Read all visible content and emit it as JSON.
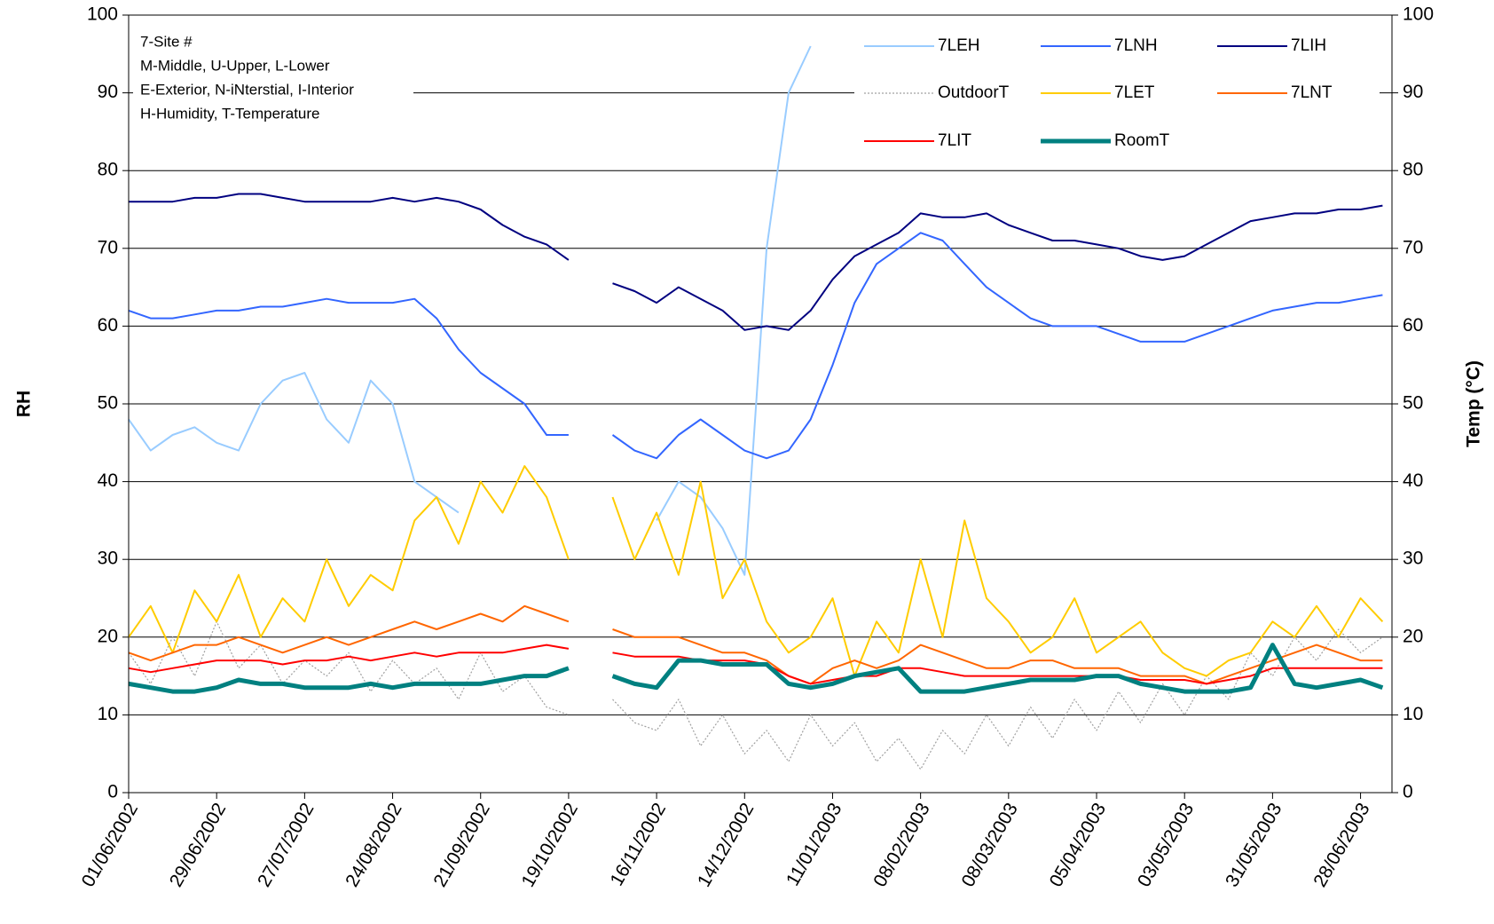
{
  "chart_data": {
    "type": "line",
    "y_label": "RH",
    "y2_label": "Temp (°C)",
    "annotation": [
      "7-Site #",
      "M-Middle, U-Upper, L-Lower",
      "E-Exterior, N-iNterstial, I-Interior",
      "H-Humidity, T-Temperature"
    ],
    "x": [
      "01/06/2002",
      "08/06/2002",
      "15/06/2002",
      "22/06/2002",
      "29/06/2002",
      "06/07/2002",
      "13/07/2002",
      "20/07/2002",
      "27/07/2002",
      "03/08/2002",
      "10/08/2002",
      "17/08/2002",
      "24/08/2002",
      "31/08/2002",
      "07/09/2002",
      "14/09/2002",
      "21/09/2002",
      "28/09/2002",
      "05/10/2002",
      "12/10/2002",
      "19/10/2002",
      "26/10/2002",
      "02/11/2002",
      "09/11/2002",
      "16/11/2002",
      "23/11/2002",
      "30/11/2002",
      "07/12/2002",
      "14/12/2002",
      "21/12/2002",
      "28/12/2002",
      "04/01/2003",
      "11/01/2003",
      "18/01/2003",
      "25/01/2003",
      "01/02/2003",
      "08/02/2003",
      "15/02/2003",
      "22/02/2003",
      "01/03/2003",
      "08/03/2003",
      "15/03/2003",
      "22/03/2003",
      "29/03/2003",
      "05/04/2003",
      "12/04/2003",
      "19/04/2003",
      "26/04/2003",
      "03/05/2003",
      "10/05/2003",
      "17/05/2003",
      "24/05/2003",
      "31/05/2003",
      "07/06/2003",
      "14/06/2003",
      "21/06/2003",
      "28/06/2003",
      "05/07/2003"
    ],
    "xlim": [
      "01/06/2002",
      "08/07/2003"
    ],
    "xticks": [
      "01/06/2002",
      "29/06/2002",
      "27/07/2002",
      "24/08/2002",
      "21/09/2002",
      "19/10/2002",
      "16/11/2002",
      "14/12/2002",
      "11/01/2003",
      "08/02/2003",
      "08/03/2003",
      "05/04/2003",
      "03/05/2003",
      "31/05/2003",
      "28/06/2003"
    ],
    "ylim": [
      0,
      100
    ],
    "yticks": [
      0,
      10,
      20,
      30,
      40,
      50,
      60,
      70,
      80,
      90,
      100
    ],
    "y2lim": [
      0,
      100
    ],
    "y2ticks": [
      0,
      10,
      20,
      30,
      40,
      50,
      60,
      70,
      80,
      90,
      100
    ],
    "grid": true,
    "legend": "top-right",
    "series": [
      {
        "name": "7LEH",
        "color": "#99ccff",
        "values": [
          48,
          44,
          46,
          47,
          45,
          44,
          50,
          53,
          54,
          48,
          45,
          53,
          50,
          40,
          38,
          36,
          null,
          null,
          null,
          null,
          null,
          null,
          null,
          null,
          35,
          40,
          38,
          34,
          28,
          70,
          90,
          96,
          null,
          null,
          null,
          null,
          null,
          null,
          null,
          null,
          null,
          null,
          null,
          null,
          null,
          null,
          null,
          null,
          null,
          null,
          null,
          null,
          null,
          null,
          null,
          null,
          null,
          null
        ]
      },
      {
        "name": "7LNH",
        "color": "#3366ff",
        "values": [
          62,
          61,
          61,
          61.5,
          62,
          62,
          62.5,
          62.5,
          63,
          63.5,
          63,
          63,
          63,
          63.5,
          61,
          57,
          54,
          52,
          50,
          46,
          46,
          null,
          46,
          44,
          43,
          46,
          48,
          46,
          44,
          43,
          44,
          48,
          55,
          63,
          68,
          70,
          72,
          71,
          68,
          65,
          63,
          61,
          60,
          60,
          60,
          59,
          58,
          58,
          58,
          59,
          60,
          61,
          62,
          62.5,
          63,
          63,
          63.5,
          64
        ]
      },
      {
        "name": "7LIH",
        "color": "#000080",
        "values": [
          76,
          76,
          76,
          76.5,
          76.5,
          77,
          77,
          76.5,
          76,
          76,
          76,
          76,
          76.5,
          76,
          76.5,
          76,
          75,
          73,
          71.5,
          70.5,
          68.5,
          null,
          65.5,
          64.5,
          63,
          65,
          63.5,
          62,
          59.5,
          60,
          59.5,
          62,
          66,
          69,
          70.5,
          72,
          74.5,
          74,
          74,
          74.5,
          73,
          72,
          71,
          71,
          70.5,
          70,
          69,
          68.5,
          69,
          70.5,
          72,
          73.5,
          74,
          74.5,
          74.5,
          75,
          75,
          75.5
        ]
      },
      {
        "name": "OutdoorT",
        "color": "#a0a0a0",
        "axis": "y2",
        "values": [
          18,
          14,
          20,
          15,
          22,
          16,
          19,
          14,
          17,
          15,
          18,
          13,
          17,
          14,
          16,
          12,
          18,
          13,
          15,
          11,
          10,
          null,
          12,
          9,
          8,
          12,
          6,
          10,
          5,
          8,
          4,
          10,
          6,
          9,
          4,
          7,
          3,
          8,
          5,
          10,
          6,
          11,
          7,
          12,
          8,
          13,
          9,
          14,
          10,
          15,
          12,
          18,
          15,
          20,
          17,
          21,
          18,
          20
        ]
      },
      {
        "name": "7LET",
        "color": "#ffcc00",
        "axis": "y2",
        "values": [
          20,
          24,
          18,
          26,
          22,
          28,
          20,
          25,
          22,
          30,
          24,
          28,
          26,
          35,
          38,
          32,
          40,
          36,
          42,
          38,
          30,
          null,
          38,
          30,
          36,
          28,
          40,
          25,
          30,
          22,
          18,
          20,
          25,
          15,
          22,
          18,
          30,
          20,
          35,
          25,
          22,
          18,
          20,
          25,
          18,
          20,
          22,
          18,
          16,
          15,
          17,
          18,
          22,
          20,
          24,
          20,
          25,
          22
        ]
      },
      {
        "name": "7LNT",
        "color": "#ff6600",
        "axis": "y2",
        "values": [
          18,
          17,
          18,
          19,
          19,
          20,
          19,
          18,
          19,
          20,
          19,
          20,
          21,
          22,
          21,
          22,
          23,
          22,
          24,
          23,
          22,
          null,
          21,
          20,
          20,
          20,
          19,
          18,
          18,
          17,
          15,
          14,
          16,
          17,
          16,
          17,
          19,
          18,
          17,
          16,
          16,
          17,
          17,
          16,
          16,
          16,
          15,
          15,
          15,
          14,
          15,
          16,
          17,
          18,
          19,
          18,
          17,
          17
        ]
      },
      {
        "name": "7LIT",
        "color": "#ff0000",
        "axis": "y2",
        "values": [
          16,
          15.5,
          16,
          16.5,
          17,
          17,
          17,
          16.5,
          17,
          17,
          17.5,
          17,
          17.5,
          18,
          17.5,
          18,
          18,
          18,
          18.5,
          19,
          18.5,
          null,
          18,
          17.5,
          17.5,
          17.5,
          17,
          17,
          17,
          16.5,
          15,
          14,
          14.5,
          15,
          15,
          16,
          16,
          15.5,
          15,
          15,
          15,
          15,
          15,
          15,
          15,
          15,
          14.5,
          14.5,
          14.5,
          14,
          14.5,
          15,
          16,
          16,
          16,
          16,
          16,
          16
        ]
      },
      {
        "name": "RoomT",
        "color": "#008080",
        "axis": "y2",
        "values": [
          14,
          13.5,
          13,
          13,
          13.5,
          14.5,
          14,
          14,
          13.5,
          13.5,
          13.5,
          14,
          13.5,
          14,
          14,
          14,
          14,
          14.5,
          15,
          15,
          16,
          null,
          15,
          14,
          13.5,
          17,
          17,
          16.5,
          16.5,
          16.5,
          14,
          13.5,
          14,
          15,
          15.5,
          16,
          13,
          13,
          13,
          13.5,
          14,
          14.5,
          14.5,
          14.5,
          15,
          15,
          14,
          13.5,
          13,
          13,
          13,
          13.5,
          19,
          14,
          13.5,
          14,
          14.5,
          13.5
        ]
      }
    ]
  }
}
